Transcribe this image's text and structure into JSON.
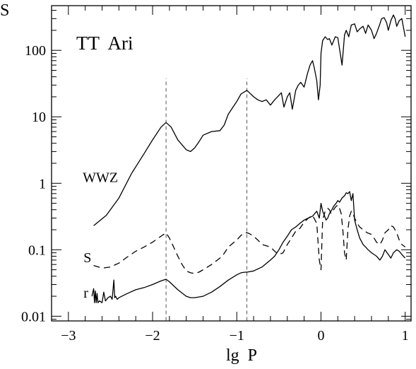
{
  "chart_data": {
    "type": "line",
    "title": "TT  Ari",
    "xlabel": "lg  P",
    "ylabel": "S",
    "xlim": [
      -3.2,
      1.07
    ],
    "ylim": [
      0.0085,
      470
    ],
    "yscale": "log",
    "x_ticks": [
      -3,
      -2,
      -1,
      0,
      1
    ],
    "x_tick_labels": [
      "−3",
      "−2",
      "−1",
      "0",
      "1"
    ],
    "y_ticks": [
      0.01,
      0.1,
      1,
      10,
      100
    ],
    "y_tick_labels": [
      "0.01",
      "0.1",
      "1",
      "10",
      "100"
    ],
    "vlines": [
      -1.84,
      -0.88
    ],
    "series": [
      {
        "name": "WWZ",
        "style": "solid",
        "x": [
          -2.7,
          -2.55,
          -2.4,
          -2.25,
          -2.1,
          -2.0,
          -1.9,
          -1.84,
          -1.78,
          -1.7,
          -1.6,
          -1.55,
          -1.5,
          -1.45,
          -1.4,
          -1.3,
          -1.2,
          -1.15,
          -1.1,
          -1.0,
          -0.95,
          -0.88,
          -0.8,
          -0.75,
          -0.7,
          -0.65,
          -0.6,
          -0.55,
          -0.5,
          -0.47,
          -0.44,
          -0.4,
          -0.37,
          -0.34,
          -0.3,
          -0.27,
          -0.24,
          -0.2,
          -0.16,
          -0.13,
          -0.1,
          -0.08,
          -0.05,
          -0.03,
          -0.01,
          0.0,
          0.02,
          0.05,
          0.08,
          0.1,
          0.13,
          0.17,
          0.2,
          0.25,
          0.28,
          0.3,
          0.33,
          0.36,
          0.4,
          0.43,
          0.46,
          0.5,
          0.53,
          0.56,
          0.6,
          0.63,
          0.66,
          0.7,
          0.72,
          0.75,
          0.78,
          0.8,
          0.83,
          0.86,
          0.88,
          0.9,
          0.93,
          0.96,
          1.0
        ],
        "y": [
          0.23,
          0.33,
          0.6,
          1.4,
          2.8,
          4.5,
          7,
          8.2,
          7,
          4.5,
          3.2,
          3.0,
          3.4,
          4.2,
          5.3,
          6,
          6.2,
          7.5,
          11,
          17,
          22,
          25,
          20,
          18,
          17,
          18,
          15,
          18,
          21,
          23,
          14,
          20,
          23,
          13,
          25,
          30,
          33,
          28,
          45,
          60,
          70,
          55,
          35,
          18,
          30,
          90,
          140,
          160,
          145,
          150,
          120,
          160,
          155,
          60,
          170,
          200,
          160,
          240,
          250,
          190,
          210,
          230,
          180,
          240,
          200,
          150,
          180,
          250,
          300,
          310,
          260,
          200,
          280,
          340,
          300,
          230,
          280,
          300,
          160
        ]
      },
      {
        "name": "S",
        "style": "dashed",
        "x": [
          -2.7,
          -2.6,
          -2.5,
          -2.4,
          -2.3,
          -2.2,
          -2.1,
          -2.0,
          -1.9,
          -1.84,
          -1.8,
          -1.75,
          -1.7,
          -1.65,
          -1.6,
          -1.55,
          -1.5,
          -1.45,
          -1.4,
          -1.3,
          -1.2,
          -1.15,
          -1.1,
          -1.0,
          -0.95,
          -0.9,
          -0.88,
          -0.85,
          -0.8,
          -0.75,
          -0.7,
          -0.6,
          -0.55,
          -0.5,
          -0.45,
          -0.4,
          -0.35,
          -0.3,
          -0.25,
          -0.2,
          -0.15,
          -0.1,
          -0.05,
          -0.02,
          0.0,
          0.02,
          0.05,
          0.08,
          0.1,
          0.12,
          0.14,
          0.16,
          0.18,
          0.2,
          0.22,
          0.24,
          0.26,
          0.28,
          0.3,
          0.32,
          0.34,
          0.36,
          0.38,
          0.4,
          0.43,
          0.46,
          0.5,
          0.55,
          0.6,
          0.63,
          0.66,
          0.7,
          0.73,
          0.76,
          0.8,
          0.83,
          0.86,
          0.9,
          0.93,
          0.96,
          1.0
        ],
        "y": [
          0.058,
          0.053,
          0.055,
          0.063,
          0.078,
          0.095,
          0.11,
          0.13,
          0.16,
          0.18,
          0.15,
          0.11,
          0.08,
          0.06,
          0.048,
          0.045,
          0.044,
          0.046,
          0.05,
          0.06,
          0.075,
          0.088,
          0.11,
          0.14,
          0.165,
          0.18,
          0.18,
          0.175,
          0.16,
          0.14,
          0.12,
          0.11,
          0.095,
          0.085,
          0.09,
          0.12,
          0.15,
          0.19,
          0.21,
          0.26,
          0.3,
          0.33,
          0.25,
          0.07,
          0.05,
          0.28,
          0.38,
          0.42,
          0.4,
          0.35,
          0.38,
          0.42,
          0.45,
          0.47,
          0.42,
          0.35,
          0.2,
          0.09,
          0.07,
          0.2,
          0.32,
          0.38,
          0.35,
          0.3,
          0.25,
          0.22,
          0.2,
          0.18,
          0.17,
          0.15,
          0.13,
          0.12,
          0.14,
          0.18,
          0.2,
          0.23,
          0.22,
          0.18,
          0.14,
          0.12,
          0.11
        ]
      },
      {
        "name": "r",
        "style": "solid",
        "x": [
          -2.72,
          -2.7,
          -2.69,
          -2.68,
          -2.67,
          -2.66,
          -2.65,
          -2.63,
          -2.6,
          -2.58,
          -2.56,
          -2.53,
          -2.5,
          -2.48,
          -2.46,
          -2.45,
          -2.44,
          -2.42,
          -2.4,
          -2.3,
          -2.2,
          -2.1,
          -2.0,
          -1.9,
          -1.84,
          -1.8,
          -1.7,
          -1.6,
          -1.55,
          -1.5,
          -1.4,
          -1.3,
          -1.2,
          -1.1,
          -1.0,
          -0.95,
          -0.9,
          -0.88,
          -0.8,
          -0.7,
          -0.6,
          -0.55,
          -0.5,
          -0.45,
          -0.4,
          -0.35,
          -0.3,
          -0.25,
          -0.2,
          -0.15,
          -0.1,
          -0.05,
          -0.02,
          0.0,
          0.02,
          0.04,
          0.06,
          0.08,
          0.1,
          0.13,
          0.15,
          0.18,
          0.2,
          0.22,
          0.25,
          0.28,
          0.3,
          0.32,
          0.34,
          0.36,
          0.38,
          0.4,
          0.43,
          0.46,
          0.5,
          0.53,
          0.56,
          0.6,
          0.63,
          0.66,
          0.7,
          0.73,
          0.76,
          0.8,
          0.83,
          0.86,
          0.9,
          0.93,
          0.96,
          1.0
        ],
        "y": [
          0.02,
          0.026,
          0.016,
          0.024,
          0.016,
          0.022,
          0.016,
          0.017,
          0.016,
          0.023,
          0.017,
          0.019,
          0.02,
          0.018,
          0.035,
          0.019,
          0.02,
          0.018,
          0.019,
          0.022,
          0.025,
          0.027,
          0.03,
          0.034,
          0.036,
          0.033,
          0.025,
          0.02,
          0.019,
          0.019,
          0.02,
          0.023,
          0.028,
          0.035,
          0.042,
          0.045,
          0.046,
          0.046,
          0.048,
          0.055,
          0.07,
          0.08,
          0.1,
          0.13,
          0.16,
          0.2,
          0.22,
          0.25,
          0.28,
          0.3,
          0.32,
          0.38,
          0.3,
          0.5,
          0.38,
          0.33,
          0.28,
          0.3,
          0.35,
          0.4,
          0.45,
          0.5,
          0.55,
          0.52,
          0.6,
          0.65,
          0.72,
          0.7,
          0.75,
          0.55,
          0.7,
          0.28,
          0.2,
          0.15,
          0.12,
          0.11,
          0.1,
          0.09,
          0.085,
          0.08,
          0.07,
          0.08,
          0.1,
          0.085,
          0.075,
          0.09,
          0.1,
          0.095,
          0.085,
          0.075
        ]
      }
    ],
    "annotations": [
      {
        "text": "WWZ",
        "x": -2.83,
        "y": 1.05
      },
      {
        "text": "S",
        "x": -2.82,
        "y": 0.065
      },
      {
        "text": "r",
        "x": -2.82,
        "y": 0.019
      }
    ]
  }
}
